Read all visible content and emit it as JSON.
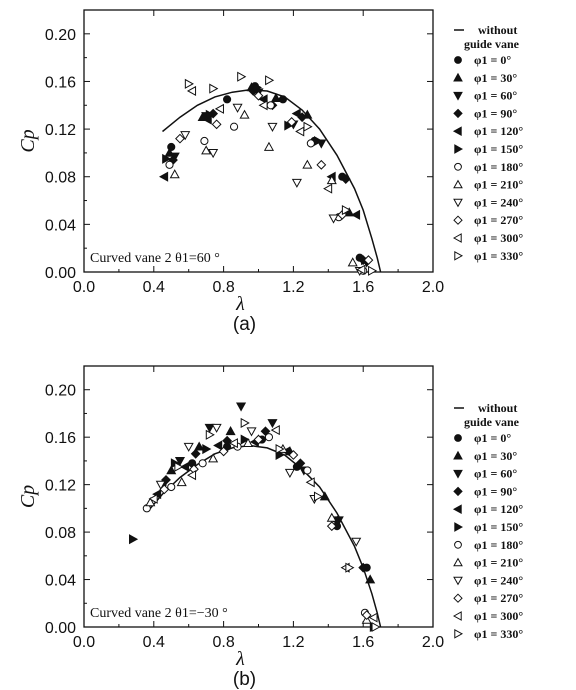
{
  "chart_data": [
    {
      "type": "scatter",
      "panel_label": "(a)",
      "xlabel": "λ",
      "ylabel": "Cp",
      "xlim": [
        0.0,
        2.0
      ],
      "ylim": [
        0.0,
        0.22
      ],
      "x_ticks": [
        "0.0",
        "0.4",
        "0.8",
        "1.2",
        "1.6",
        "2.0"
      ],
      "y_ticks": [
        "0.00",
        "0.04",
        "0.08",
        "0.12",
        "0.16",
        "0.20"
      ],
      "annotation": "Curved vane 2  θ1=60 °",
      "grid": false,
      "legend_position": "right",
      "line": {
        "name": "without guide vane",
        "x": [
          0.45,
          0.55,
          0.65,
          0.75,
          0.85,
          0.95,
          1.05,
          1.15,
          1.25,
          1.35,
          1.45,
          1.55,
          1.6,
          1.65,
          1.68,
          1.7
        ],
        "y": [
          0.118,
          0.13,
          0.14,
          0.147,
          0.151,
          0.153,
          0.152,
          0.147,
          0.136,
          0.12,
          0.098,
          0.07,
          0.052,
          0.028,
          0.012,
          0.0
        ]
      },
      "series": [
        {
          "name": "φ1 = 0°",
          "marker": "circle-filled",
          "x": [
            0.5,
            0.82,
            0.98,
            1.14,
            1.32,
            1.48,
            1.58
          ],
          "y": [
            0.105,
            0.145,
            0.156,
            0.145,
            0.11,
            0.08,
            0.012
          ]
        },
        {
          "name": "φ1 = 30°",
          "marker": "tri-up-filled",
          "x": [
            0.49,
            0.68,
            0.96,
            1.1,
            1.28,
            1.52
          ],
          "y": [
            0.1,
            0.13,
            0.155,
            0.146,
            0.132,
            0.05
          ]
        },
        {
          "name": "φ1 = 60°",
          "marker": "tri-down-filled",
          "x": [
            0.52,
            0.7,
            1.0,
            1.2,
            1.36,
            1.62
          ],
          "y": [
            0.097,
            0.131,
            0.151,
            0.124,
            0.108,
            0.008
          ]
        },
        {
          "name": "φ1 = 90°",
          "marker": "diamond-filled",
          "x": [
            0.51,
            0.74,
            0.97,
            1.08,
            1.25,
            1.5,
            1.6
          ],
          "y": [
            0.094,
            0.133,
            0.152,
            0.14,
            0.13,
            0.078,
            0.01
          ]
        },
        {
          "name": "φ1 = 120°",
          "marker": "tri-left-filled",
          "x": [
            0.46,
            0.71,
            1.03,
            1.22,
            1.42,
            1.56
          ],
          "y": [
            0.08,
            0.128,
            0.145,
            0.133,
            0.08,
            0.048
          ]
        },
        {
          "name": "φ1 = 150°",
          "marker": "tri-right-filled",
          "x": [
            0.47,
            0.72,
            0.99,
            1.17,
            1.34,
            1.61
          ],
          "y": [
            0.095,
            0.132,
            0.155,
            0.123,
            0.11,
            0.01
          ]
        },
        {
          "name": "φ1 = 180°",
          "marker": "circle-open",
          "x": [
            0.49,
            0.69,
            0.86,
            1.07,
            1.3,
            1.46,
            1.6
          ],
          "y": [
            0.09,
            0.11,
            0.122,
            0.14,
            0.108,
            0.046,
            0.001
          ]
        },
        {
          "name": "φ1 = 210°",
          "marker": "tri-up-open",
          "x": [
            0.52,
            0.7,
            0.92,
            1.06,
            1.28,
            1.42,
            1.54
          ],
          "y": [
            0.082,
            0.102,
            0.132,
            0.105,
            0.09,
            0.077,
            0.008
          ]
        },
        {
          "name": "φ1 = 240°",
          "marker": "tri-down-open",
          "x": [
            0.58,
            0.74,
            0.88,
            1.08,
            1.22,
            1.43,
            1.58
          ],
          "y": [
            0.115,
            0.1,
            0.138,
            0.122,
            0.075,
            0.045,
            0.001
          ]
        },
        {
          "name": "φ1 = 270°",
          "marker": "diamond-open",
          "x": [
            0.55,
            0.76,
            1.0,
            1.19,
            1.36,
            1.48,
            1.63
          ],
          "y": [
            0.112,
            0.124,
            0.148,
            0.126,
            0.09,
            0.048,
            0.01
          ]
        },
        {
          "name": "φ1 = 300°",
          "marker": "tri-left-open",
          "x": [
            0.62,
            0.78,
            1.03,
            1.24,
            1.4,
            1.59
          ],
          "y": [
            0.152,
            0.137,
            0.14,
            0.118,
            0.07,
            0.002
          ]
        },
        {
          "name": "φ1 = 330°",
          "marker": "tri-right-open",
          "x": [
            0.6,
            0.74,
            0.9,
            1.06,
            1.28,
            1.5,
            1.65
          ],
          "y": [
            0.158,
            0.154,
            0.164,
            0.161,
            0.122,
            0.052,
            0.001
          ]
        }
      ]
    },
    {
      "type": "scatter",
      "panel_label": "(b)",
      "xlabel": "λ",
      "ylabel": "Cp",
      "xlim": [
        0.0,
        2.0
      ],
      "ylim": [
        0.0,
        0.22
      ],
      "x_ticks": [
        "0.0",
        "0.4",
        "0.8",
        "1.2",
        "1.6",
        "2.0"
      ],
      "y_ticks": [
        "0.00",
        "0.04",
        "0.08",
        "0.12",
        "0.16",
        "0.20"
      ],
      "annotation": "Curved vane 2  θ1=−30 °",
      "grid": false,
      "legend_position": "right",
      "line": {
        "name": "without guide vane",
        "x": [
          0.38,
          0.45,
          0.55,
          0.65,
          0.75,
          0.85,
          0.95,
          1.05,
          1.15,
          1.25,
          1.35,
          1.45,
          1.55,
          1.6,
          1.65,
          1.68,
          1.7
        ],
        "y": [
          0.1,
          0.112,
          0.126,
          0.137,
          0.146,
          0.151,
          0.153,
          0.151,
          0.145,
          0.133,
          0.118,
          0.096,
          0.068,
          0.05,
          0.028,
          0.012,
          0.0
        ]
      },
      "series": [
        {
          "name": "φ1 = 0°",
          "marker": "circle-filled",
          "x": [
            0.45,
            0.62,
            0.82,
            1.02,
            1.22,
            1.45,
            1.62
          ],
          "y": [
            0.12,
            0.138,
            0.152,
            0.158,
            0.135,
            0.085,
            0.05
          ]
        },
        {
          "name": "φ1 = 30°",
          "marker": "tri-up-filled",
          "x": [
            0.5,
            0.66,
            0.84,
            1.0,
            1.18,
            1.38,
            1.64
          ],
          "y": [
            0.132,
            0.152,
            0.165,
            0.158,
            0.148,
            0.11,
            0.04
          ]
        },
        {
          "name": "φ1 = 60°",
          "marker": "tri-down-filled",
          "x": [
            0.55,
            0.72,
            0.9,
            1.08,
            1.26,
            1.46
          ],
          "y": [
            0.14,
            0.168,
            0.186,
            0.172,
            0.132,
            0.09
          ]
        },
        {
          "name": "φ1 = 90°",
          "marker": "diamond-filled",
          "x": [
            0.47,
            0.64,
            0.82,
            1.04,
            1.24,
            1.6
          ],
          "y": [
            0.124,
            0.146,
            0.157,
            0.165,
            0.138,
            0.05
          ]
        },
        {
          "name": "φ1 = 120°",
          "marker": "tri-left-filled",
          "x": [
            0.42,
            0.58,
            0.77,
            0.98,
            1.16,
            1.44
          ],
          "y": [
            0.112,
            0.135,
            0.153,
            0.156,
            0.148,
            0.09
          ]
        },
        {
          "name": "φ1 = 150°",
          "marker": "tri-right-filled",
          "x": [
            0.28,
            0.52,
            0.7,
            0.92,
            1.12,
            1.66
          ],
          "y": [
            0.074,
            0.138,
            0.15,
            0.158,
            0.145,
            0.0
          ]
        },
        {
          "name": "φ1 = 180°",
          "marker": "circle-open",
          "x": [
            0.36,
            0.5,
            0.68,
            0.88,
            1.06,
            1.28,
            1.61
          ],
          "y": [
            0.1,
            0.118,
            0.138,
            0.152,
            0.16,
            0.132,
            0.012
          ]
        },
        {
          "name": "φ1 = 210°",
          "marker": "tri-up-open",
          "x": [
            0.38,
            0.56,
            0.74,
            0.94,
            1.14,
            1.42,
            1.62
          ],
          "y": [
            0.105,
            0.122,
            0.142,
            0.155,
            0.15,
            0.092,
            0.006
          ]
        },
        {
          "name": "φ1 = 240°",
          "marker": "tri-down-open",
          "x": [
            0.44,
            0.6,
            0.76,
            0.96,
            1.18,
            1.32,
            1.56
          ],
          "y": [
            0.12,
            0.152,
            0.168,
            0.165,
            0.13,
            0.108,
            0.072
          ]
        },
        {
          "name": "φ1 = 270°",
          "marker": "diamond-open",
          "x": [
            0.46,
            0.63,
            0.8,
            1.0,
            1.2,
            1.42,
            1.62
          ],
          "y": [
            0.116,
            0.133,
            0.148,
            0.158,
            0.145,
            0.085,
            0.01
          ]
        },
        {
          "name": "φ1 = 300°",
          "marker": "tri-left-open",
          "x": [
            0.4,
            0.62,
            0.86,
            1.1,
            1.3,
            1.5,
            1.66
          ],
          "y": [
            0.108,
            0.128,
            0.155,
            0.166,
            0.122,
            0.05,
            0.008
          ]
        },
        {
          "name": "φ1 = 330°",
          "marker": "tri-right-open",
          "x": [
            0.54,
            0.72,
            0.92,
            1.12,
            1.34,
            1.52,
            1.67
          ],
          "y": [
            0.135,
            0.162,
            0.172,
            0.15,
            0.11,
            0.05,
            0.0
          ]
        }
      ]
    }
  ],
  "legend": {
    "line_label_1": "without",
    "line_label_2": "guide vane",
    "entries": [
      "φ1 = 0°",
      "φ1 = 30°",
      "φ1 = 60°",
      "φ1 = 90°",
      "φ1 = 120°",
      "φ1 = 150°",
      "φ1 = 180°",
      "φ1 = 210°",
      "φ1 = 240°",
      "φ1 = 270°",
      "φ1 = 300°",
      "φ1 = 330°"
    ]
  }
}
